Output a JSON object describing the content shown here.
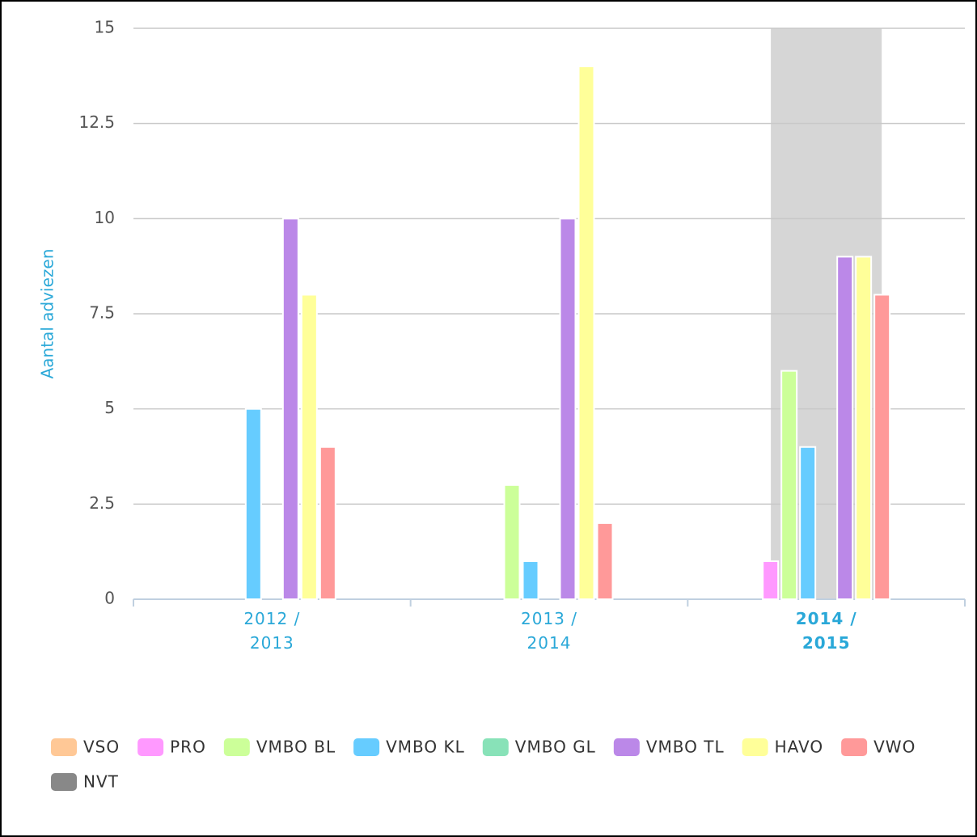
{
  "chart_data": {
    "type": "bar",
    "y_axis_label": "Aantal adviezen",
    "categories": [
      "2012 / 2013",
      "2013 / 2014",
      "2014 / 2015"
    ],
    "highlight_category": 2,
    "series": [
      {
        "name": "VSO",
        "color": "#ffc896",
        "values": [
          0,
          0,
          0
        ]
      },
      {
        "name": "PRO",
        "color": "#ff99ff",
        "values": [
          0,
          0,
          1
        ]
      },
      {
        "name": "VMBO BL",
        "color": "#ccff99",
        "values": [
          0,
          3,
          6
        ]
      },
      {
        "name": "VMBO KL",
        "color": "#66ccff",
        "values": [
          5,
          1,
          4
        ]
      },
      {
        "name": "VMBO GL",
        "color": "#88e2b8",
        "values": [
          0,
          0,
          0
        ]
      },
      {
        "name": "VMBO TL",
        "color": "#bb88e8",
        "values": [
          10,
          10,
          9
        ]
      },
      {
        "name": "HAVO",
        "color": "#ffff99",
        "values": [
          8,
          14,
          9
        ]
      },
      {
        "name": "VWO",
        "color": "#ff9999",
        "values": [
          4,
          2,
          8
        ]
      },
      {
        "name": "NVT",
        "color": "#888888",
        "values": [
          0,
          0,
          0
        ]
      }
    ],
    "ylim": [
      0,
      15
    ],
    "yticks": [
      0,
      2.5,
      5,
      7.5,
      10,
      12.5,
      15
    ],
    "grid": true,
    "legend": "bottom"
  }
}
